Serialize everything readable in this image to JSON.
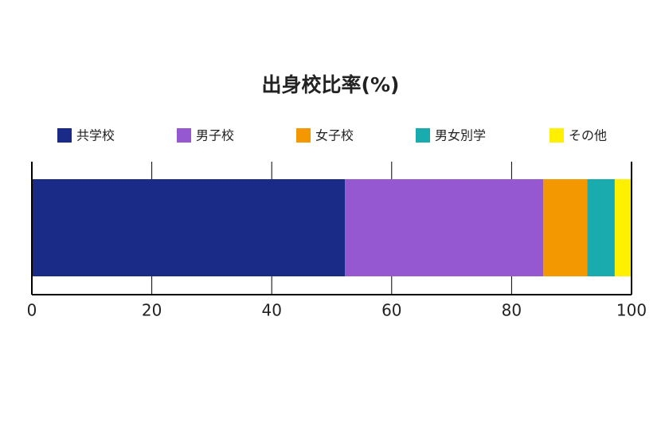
{
  "chart_data": {
    "type": "bar",
    "orientation": "horizontal",
    "stacked": true,
    "title": "出身校比率(%)",
    "categories": [
      null
    ],
    "series": [
      {
        "name": "共学校",
        "color": "#1a2a87",
        "values": [
          52.2
        ]
      },
      {
        "name": "男子校",
        "color": "#9558d0",
        "values": [
          33.1
        ]
      },
      {
        "name": "女子校",
        "color": "#f39800",
        "values": [
          7.3
        ]
      },
      {
        "name": "男女別学",
        "color": "#1aabaf",
        "values": [
          4.6
        ]
      },
      {
        "name": "その他",
        "color": "#fff000",
        "values": [
          2.8
        ]
      }
    ],
    "xlim": [
      0,
      100
    ],
    "xticks": [
      0,
      20,
      40,
      60,
      80,
      100
    ],
    "legend": "top"
  }
}
